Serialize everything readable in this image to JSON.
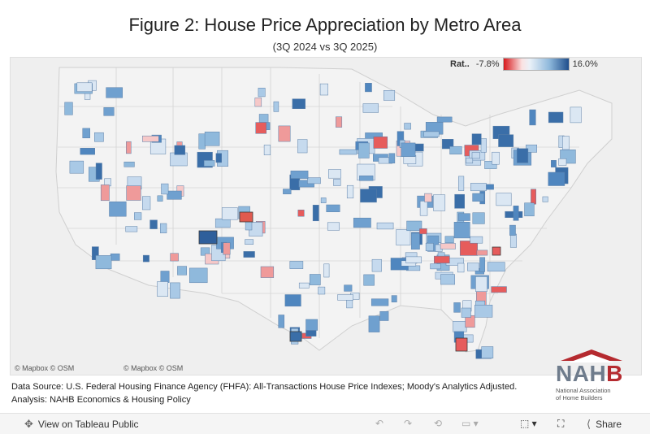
{
  "header": {
    "title": "Figure 2: House Price Appreciation by Metro Area",
    "subtitle": "(3Q 2024 vs 3Q 2025)"
  },
  "legend": {
    "label": "Rat..",
    "min_label": "-7.8%",
    "max_label": "16.0%",
    "min_color": "#d7191c",
    "mid_color": "#f0f4f8",
    "max_color": "#1f4e8c"
  },
  "map": {
    "attribution_left": "© Mapbox  © OSM",
    "attribution_right": "© Mapbox  © OSM",
    "land_color": "#efefef",
    "border_color": "#d2d2d2"
  },
  "footer": {
    "source": "Data Source: U.S. Federal Housing Finance Agency (FHFA): All-Transactions House Price Indexes; Moody's Analytics Adjusted.",
    "analysis": "Analysis: NAHB Economics & Housing Policy"
  },
  "logo": {
    "letters_a": "NAH",
    "letters_b": "B",
    "org_line1": "National Association",
    "org_line2": "of Home Builders"
  },
  "toolbar": {
    "view_label": "View on Tableau Public",
    "share_label": "Share"
  }
}
